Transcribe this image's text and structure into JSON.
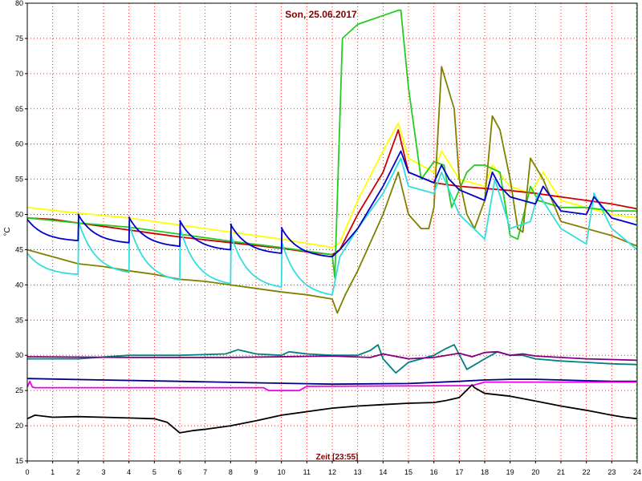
{
  "chart_data": {
    "type": "line",
    "title": "Son, 25.06.2017",
    "xlabel": "Zeit [23:55]",
    "ylabel": "°C",
    "xlim": [
      0,
      24
    ],
    "ylim": [
      15,
      80
    ],
    "x_ticks": [
      "0",
      "1",
      "2",
      "3",
      "4",
      "5",
      "6",
      "7",
      "8",
      "9",
      "10",
      "11",
      "12",
      "13",
      "14",
      "15",
      "16",
      "17",
      "18",
      "19",
      "20",
      "21",
      "22",
      "23",
      "24"
    ],
    "y_ticks": [
      "15",
      "20",
      "25",
      "30",
      "35",
      "40",
      "45",
      "50",
      "55",
      "60",
      "65",
      "70",
      "75",
      "80"
    ],
    "grid": true,
    "colors": {
      "title": "#800000",
      "xlabel": "#800000",
      "grid": "#e00000",
      "frame": "#000000",
      "end_marker": "#008000"
    },
    "series": [
      {
        "color": "#ffff00",
        "x": [
          0,
          2,
          4,
          6,
          8,
          10,
          12,
          12.3,
          13,
          14,
          14.6,
          15,
          16,
          16.3,
          17,
          18,
          18.3,
          19,
          19.8,
          20.3,
          21,
          22,
          23,
          24
        ],
        "y": [
          51,
          50.2,
          49.5,
          48.5,
          47.5,
          46.5,
          45.3,
          46,
          52,
          59,
          63,
          58,
          56,
          59,
          55,
          54,
          57,
          54,
          53,
          56,
          52,
          51,
          50,
          49.5
        ]
      },
      {
        "color": "#cc0000",
        "x": [
          0,
          1,
          2,
          3,
          4,
          5,
          6,
          7,
          8,
          9,
          10,
          11,
          12,
          12.3,
          13,
          14,
          14.6,
          15,
          16,
          17,
          18,
          19,
          20,
          21,
          22,
          23,
          24
        ],
        "y": [
          49.5,
          49.3,
          48.8,
          48.3,
          47.8,
          47.3,
          46.8,
          46.4,
          46,
          45.6,
          45.2,
          44.7,
          44.3,
          45,
          50,
          56,
          62,
          56,
          54.5,
          54,
          53.7,
          53.4,
          53,
          52.5,
          52,
          51.5,
          50.8
        ]
      },
      {
        "color": "#22cc22",
        "x": [
          0,
          2,
          4,
          6,
          8,
          10,
          12,
          12.1,
          12.4,
          13,
          14.2,
          14.6,
          14.7,
          15,
          15.5,
          16,
          16.4,
          16.7,
          17.3,
          17.6,
          18,
          18.6,
          19,
          19.3,
          19.6,
          19.8,
          20.1,
          21,
          22,
          23,
          24
        ],
        "y": [
          49.5,
          48.8,
          48.2,
          47.2,
          46.2,
          45.3,
          44.3,
          41,
          75,
          77,
          78.5,
          79,
          79,
          68,
          55,
          57.5,
          57,
          51,
          56,
          57,
          57,
          56,
          47,
          46.5,
          51,
          54,
          52,
          51,
          51,
          50.5,
          50.5
        ]
      },
      {
        "color": "#808000",
        "x": [
          0,
          0.5,
          1,
          2,
          3,
          4,
          5,
          6,
          7,
          8,
          9,
          10,
          11,
          12,
          12.2,
          12.5,
          13,
          14,
          14.6,
          15,
          15.5,
          15.8,
          16,
          16.3,
          16.8,
          17,
          17.3,
          17.6,
          18,
          18.3,
          18.6,
          19,
          19.3,
          19.5,
          19.8,
          20.3,
          21,
          22,
          23,
          24
        ],
        "y": [
          45,
          44.5,
          44,
          43,
          42.6,
          42,
          41.5,
          40.8,
          40.5,
          40,
          39.5,
          39,
          38.6,
          38,
          36,
          38.5,
          42,
          50,
          56,
          50,
          48,
          48,
          51,
          71,
          65,
          55,
          50,
          48,
          52,
          64,
          62,
          55,
          48,
          47.5,
          58,
          55,
          49,
          48,
          47,
          45.5
        ]
      },
      {
        "color": "#33dddd",
        "kind": "periodic",
        "valley_y": [
          41.5,
          41.8,
          40.7,
          40.2,
          39.7,
          38.6
        ],
        "peak_y": [
          49.2,
          48.8,
          48.2,
          47.3,
          46.2
        ],
        "x": [
          12,
          12.3,
          13,
          14,
          14.7,
          15,
          16,
          16.3,
          17,
          18,
          18.4,
          19,
          19.8,
          20.1,
          21,
          22,
          22.3,
          23,
          24
        ],
        "y": [
          38.6,
          44,
          48,
          53,
          58,
          54,
          53,
          56,
          50,
          46.5,
          55,
          48,
          49,
          53,
          48,
          45.8,
          53,
          48,
          45
        ]
      },
      {
        "color": "#0000cc",
        "kind": "periodic",
        "valley_y": [
          46.3,
          46,
          45.5,
          45,
          44.5,
          44
        ],
        "peak_y": [
          50,
          49.6,
          49.1,
          48.6,
          48.1
        ],
        "x": [
          12,
          12.3,
          13,
          14,
          14.7,
          15,
          16,
          16.3,
          16.6,
          17,
          18,
          18.3,
          18.6,
          19,
          20,
          20.3,
          21,
          22,
          22.3,
          23,
          24
        ],
        "y": [
          44,
          45,
          48,
          54,
          59,
          56,
          54.5,
          57,
          55,
          53.5,
          52,
          56,
          54,
          52.5,
          51.5,
          54,
          50.5,
          50,
          52.5,
          49.5,
          48.5
        ]
      },
      {
        "color": "#008080",
        "x": [
          0,
          2,
          4,
          6,
          7.8,
          8.3,
          9,
          10,
          10.3,
          11,
          12,
          13,
          13.5,
          13.8,
          14,
          14.5,
          15,
          16,
          16.5,
          16.8,
          17.3,
          18,
          18.5,
          19,
          19.5,
          20,
          21,
          22,
          23,
          24
        ],
        "y": [
          29.5,
          29.5,
          30,
          30,
          30.2,
          30.8,
          30.2,
          30,
          30.5,
          30.2,
          30,
          30,
          30.7,
          31.5,
          29.5,
          27.5,
          29,
          30,
          31,
          31.5,
          28,
          29.5,
          30.5,
          30,
          30,
          29.5,
          29.2,
          29,
          28.8,
          28.7
        ]
      },
      {
        "color": "#800080",
        "x": [
          0,
          4,
          8,
          12,
          13.5,
          14,
          15,
          16,
          17,
          17.5,
          18,
          18.5,
          19,
          19.5,
          20,
          21,
          22,
          23,
          24
        ],
        "y": [
          29.8,
          29.7,
          29.7,
          29.9,
          29.7,
          30.2,
          29.5,
          29.7,
          30.3,
          29.8,
          30.4,
          30.5,
          30,
          30.2,
          29.9,
          29.7,
          29.5,
          29.4,
          29.3
        ]
      },
      {
        "color": "#000080",
        "x": [
          0,
          3,
          6,
          9,
          12,
          15,
          17,
          18,
          19,
          20,
          21,
          22,
          23,
          24
        ],
        "y": [
          26.7,
          26.5,
          26.3,
          26.1,
          25.9,
          26,
          26.3,
          26.5,
          26.6,
          26.6,
          26.5,
          26.4,
          26.3,
          26.3
        ]
      },
      {
        "color": "#ee00ee",
        "x": [
          0,
          0.1,
          0.2,
          0.3,
          9.3,
          9.5,
          10.7,
          11,
          17.5,
          18,
          24
        ],
        "y": [
          25.5,
          26.3,
          25.5,
          25.4,
          25.4,
          25,
          25,
          25.6,
          25.7,
          26.2,
          26.2
        ]
      },
      {
        "color": "#000000",
        "x": [
          0,
          0.3,
          1,
          2,
          3,
          4,
          5,
          5.5,
          6,
          6.5,
          7,
          8,
          9,
          10,
          11,
          12,
          13,
          14,
          15,
          16,
          16.5,
          17,
          17.5,
          17.6,
          18,
          19,
          20,
          21,
          22,
          23,
          23.5,
          24
        ],
        "y": [
          21,
          21.5,
          21.2,
          21.3,
          21.2,
          21.1,
          21,
          20.5,
          19,
          19.3,
          19.5,
          20,
          20.7,
          21.5,
          22,
          22.5,
          22.8,
          23,
          23.2,
          23.3,
          23.6,
          24,
          25.8,
          25.4,
          24.6,
          24.2,
          23.5,
          22.8,
          22.2,
          21.5,
          21.2,
          21
        ]
      }
    ]
  }
}
